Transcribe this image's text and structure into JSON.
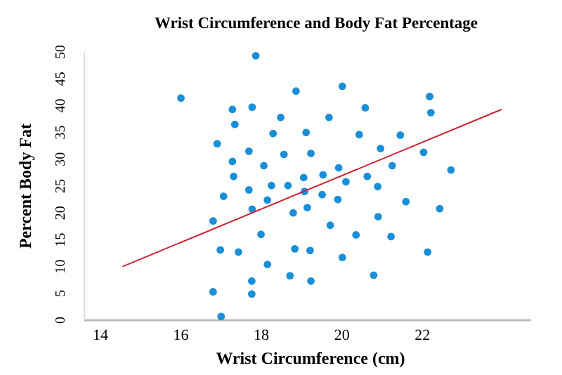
{
  "chart_data": {
    "type": "scatter",
    "title": "Wrist Circumference and Body Fat Percentage",
    "xlabel": "Wrist Circumference (cm)",
    "ylabel": "Percent Body Fat",
    "xlim": [
      13.6,
      24.7
    ],
    "xticks": [
      14,
      16,
      18,
      20,
      22
    ],
    "ylim": [
      0,
      50
    ],
    "yticks": [
      0,
      5,
      10,
      15,
      20,
      25,
      30,
      35,
      40,
      45,
      50
    ],
    "grid": false,
    "marker": "circle",
    "series": [
      {
        "color": "#1a8fd8",
        "x": [
          16.0,
          16.9,
          17.06,
          16.8,
          16.98,
          16.8,
          17.0,
          17.86,
          18.86,
          20.01,
          17.28,
          17.77,
          17.34,
          18.48,
          18.29,
          19.11,
          19.68,
          20.58,
          20.43,
          17.69,
          18.56,
          19.23,
          17.28,
          18.06,
          17.31,
          17.69,
          18.25,
          18.66,
          19.05,
          19.53,
          19.92,
          19.07,
          19.51,
          20.1,
          20.63,
          20.89,
          20.96,
          21.25,
          18.15,
          17.77,
          18.79,
          19.14,
          19.9,
          17.99,
          19.71,
          20.9,
          20.35,
          21.22,
          17.43,
          18.83,
          19.21,
          20.01,
          18.15,
          17.76,
          18.71,
          19.23,
          20.79,
          17.76,
          22.18,
          22.21,
          21.45,
          22.03,
          22.71,
          21.59,
          22.43,
          22.13
        ],
        "values": [
          41.4,
          32.9,
          23.1,
          18.5,
          13.1,
          5.3,
          0.7,
          49.3,
          42.7,
          43.6,
          39.3,
          39.7,
          36.5,
          37.8,
          34.8,
          35.0,
          37.8,
          39.6,
          34.6,
          31.5,
          30.9,
          31.1,
          29.6,
          28.8,
          26.8,
          24.3,
          25.1,
          25.1,
          26.6,
          27.1,
          28.4,
          24.0,
          23.4,
          25.8,
          26.8,
          24.9,
          32.0,
          28.8,
          22.4,
          20.7,
          20.0,
          21.0,
          22.5,
          16.0,
          17.7,
          19.3,
          15.9,
          15.6,
          12.7,
          13.3,
          13.0,
          11.7,
          10.4,
          7.3,
          8.3,
          7.3,
          8.4,
          4.9,
          41.7,
          38.7,
          34.5,
          31.3,
          28.0,
          22.1,
          20.8,
          12.7
        ]
      },
      {
        "type": "line",
        "color": "#cc2233",
        "marker": "none",
        "x": [
          14.55,
          23.97
        ],
        "values": [
          10.0,
          39.3
        ]
      }
    ]
  }
}
